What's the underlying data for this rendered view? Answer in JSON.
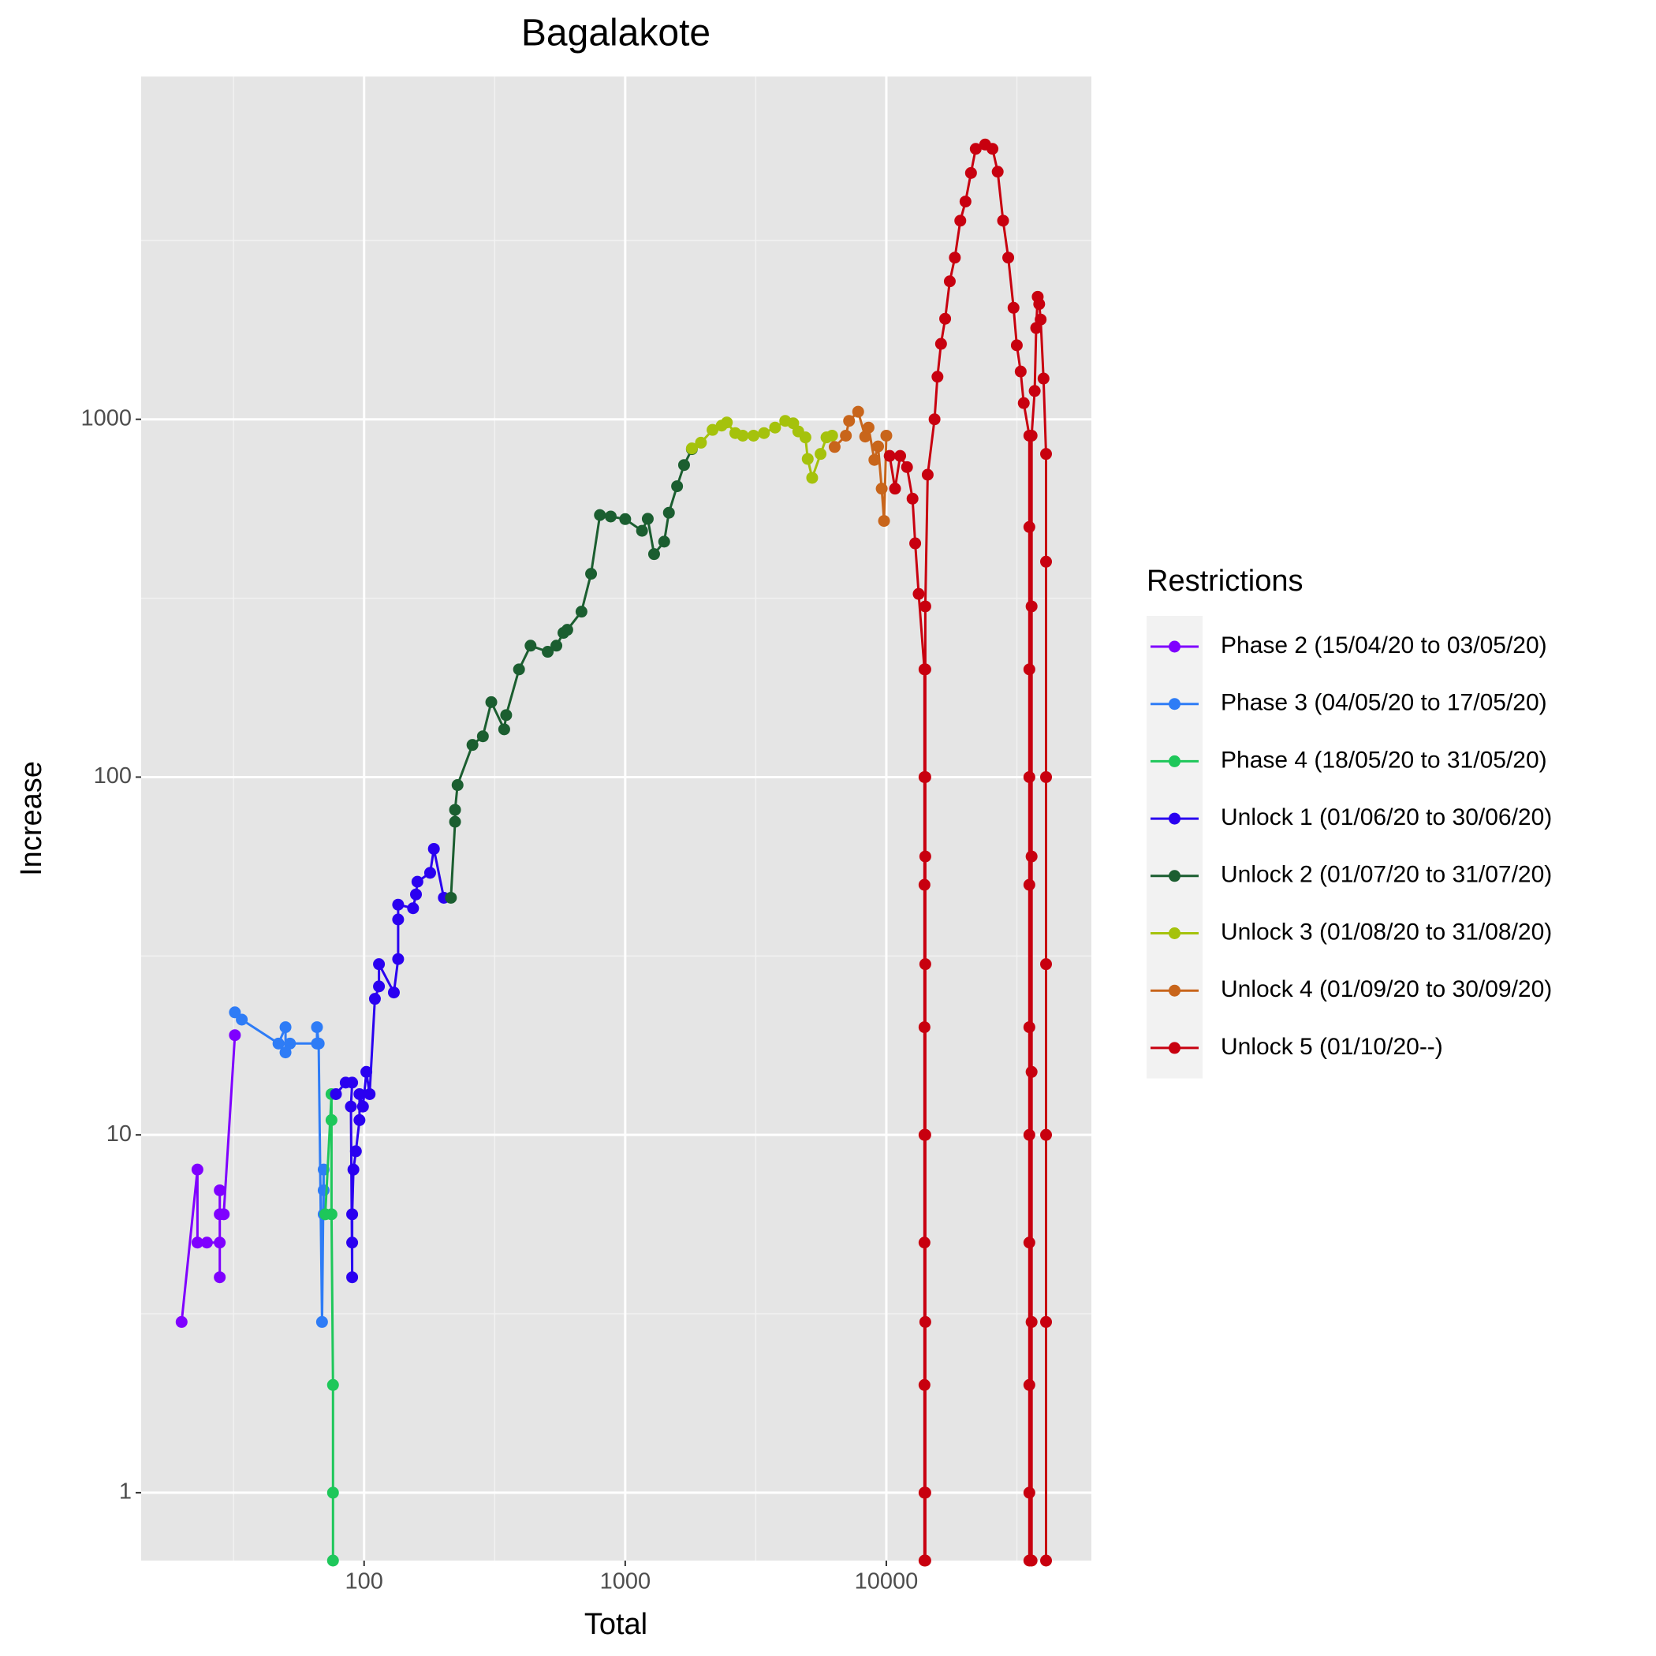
{
  "chart_data": {
    "type": "line",
    "title": "Bagalakote",
    "x_label": "Total",
    "y_label": "Increase",
    "x_log": true,
    "y_log": true,
    "xlim": [
      14,
      61000
    ],
    "ylim": [
      0.646,
      9080
    ],
    "xticks": [
      100,
      1000,
      10000
    ],
    "yticks": [
      1,
      10,
      100,
      1000
    ],
    "x_minor_grid": [
      31.62,
      316.2,
      3162,
      31623
    ],
    "y_minor_grid": [
      3.162,
      31.62,
      316.2,
      3162
    ],
    "grid": true,
    "markers": true,
    "legend_title": "Restrictions",
    "legend_position": "right",
    "series": [
      {
        "name": "Phase 2 (15/04/20 to 03/05/20)",
        "color": "#7f00ff",
        "x": [
          20,
          23,
          23,
          25,
          28,
          28,
          28,
          28,
          29,
          32
        ],
        "values": [
          3,
          8,
          5,
          5,
          5,
          4,
          7,
          6,
          6,
          19
        ]
      },
      {
        "name": "Phase 3 (04/05/20 to 17/05/20)",
        "color": "#2e7cf6",
        "x": [
          32,
          34,
          47,
          50,
          50,
          52,
          66,
          66,
          67,
          69,
          70,
          70,
          70
        ],
        "values": [
          22,
          21,
          18,
          20,
          17,
          18,
          18,
          20,
          18,
          3,
          8,
          7,
          6
        ]
      },
      {
        "name": "Phase 4 (18/05/20 to 31/05/20)",
        "color": "#1ec75a",
        "x": [
          71,
          75,
          75,
          75,
          76,
          76,
          76
        ],
        "values": [
          6,
          13,
          11,
          6,
          2,
          1,
          0
        ]
      },
      {
        "name": "Unlock 1 (01/06/20 to 30/06/20)",
        "color": "#2a00f0",
        "x": [
          78,
          85,
          90,
          89,
          90,
          90,
          90,
          91,
          93,
          96,
          96,
          99,
          102,
          105,
          110,
          114,
          114,
          130,
          135,
          135,
          135,
          154,
          158,
          160,
          179,
          185,
          202
        ],
        "values": [
          13,
          14,
          14,
          12,
          4,
          5,
          6,
          8,
          9,
          11,
          13,
          12,
          15,
          13,
          24,
          26,
          30,
          25,
          31,
          40,
          44,
          43,
          47,
          51,
          54,
          63,
          46
        ]
      },
      {
        "name": "Unlock 2 (01/07/20 to 31/07/20)",
        "color": "#1b5e30",
        "x": [
          215,
          223,
          223,
          228,
          260,
          285,
          307,
          344,
          350,
          392,
          434,
          505,
          545,
          580,
          600,
          680,
          740,
          800,
          880,
          1000,
          1160,
          1220,
          1290,
          1410,
          1470,
          1580,
          1680,
          1800
        ],
        "values": [
          46,
          75,
          81,
          95,
          123,
          130,
          162,
          136,
          149,
          200,
          233,
          224,
          233,
          253,
          258,
          290,
          370,
          540,
          535,
          526,
          488,
          527,
          420,
          455,
          548,
          650,
          745,
          825
        ]
      },
      {
        "name": "Unlock 3 (01/08/20 to 31/08/20)",
        "color": "#a5c20c",
        "x": [
          1800,
          1950,
          2160,
          2340,
          2450,
          2640,
          2820,
          3100,
          3400,
          3750,
          4100,
          4400,
          4600,
          4900,
          5000,
          5200,
          5600,
          5900,
          6200
        ],
        "values": [
          829,
          860,
          934,
          960,
          980,
          915,
          900,
          900,
          915,
          948,
          990,
          975,
          925,
          890,
          775,
          686,
          800,
          890,
          900
        ]
      },
      {
        "name": "Unlock 4 (01/09/20 to 30/09/20)",
        "color": "#c8651b",
        "x": [
          6340,
          7000,
          7200,
          7800,
          8300,
          8550,
          9000,
          9300,
          9600,
          9800,
          10000
        ],
        "values": [
          837,
          900,
          990,
          1050,
          895,
          948,
          770,
          840,
          640,
          520,
          900
        ]
      },
      {
        "name": "Unlock 5 (01/10/20--)",
        "color": "#c8000f",
        "x": [
          10300,
          10800,
          11300,
          12000,
          12600,
          12900,
          13300,
          14000,
          14000,
          14000,
          14000,
          14000,
          14000,
          14000,
          14000,
          14000,
          14100,
          14100,
          14100,
          14100,
          14100,
          14100,
          14100,
          14100,
          14100,
          14400,
          15300,
          15700,
          16200,
          16800,
          17500,
          18300,
          19200,
          20100,
          21100,
          22000,
          23900,
          25500,
          26700,
          28000,
          29300,
          30700,
          31600,
          32700,
          33600,
          35300,
          35300,
          35300,
          35300,
          35300,
          35300,
          35300,
          35300,
          35300,
          35300,
          35300,
          36000,
          36000,
          36000,
          36000,
          36000,
          36000,
          37000,
          37500,
          38000,
          38500,
          39000,
          40000,
          40900,
          40900,
          40900,
          40900,
          40900,
          40900,
          40900
        ],
        "values": [
          790,
          640,
          790,
          735,
          600,
          450,
          325,
          200,
          100,
          50,
          20,
          10,
          5,
          2,
          1,
          0,
          0,
          1,
          3,
          10,
          30,
          60,
          100,
          200,
          300,
          700,
          1000,
          1315,
          1625,
          1910,
          2430,
          2830,
          3590,
          4060,
          4880,
          5700,
          5860,
          5700,
          4920,
          3590,
          2830,
          2050,
          1610,
          1360,
          1110,
          900,
          500,
          200,
          100,
          50,
          20,
          10,
          5,
          2,
          1,
          0,
          0,
          3,
          15,
          60,
          300,
          900,
          1200,
          1800,
          2200,
          2100,
          1900,
          1300,
          800,
          400,
          100,
          30,
          10,
          3,
          0
        ]
      }
    ]
  }
}
